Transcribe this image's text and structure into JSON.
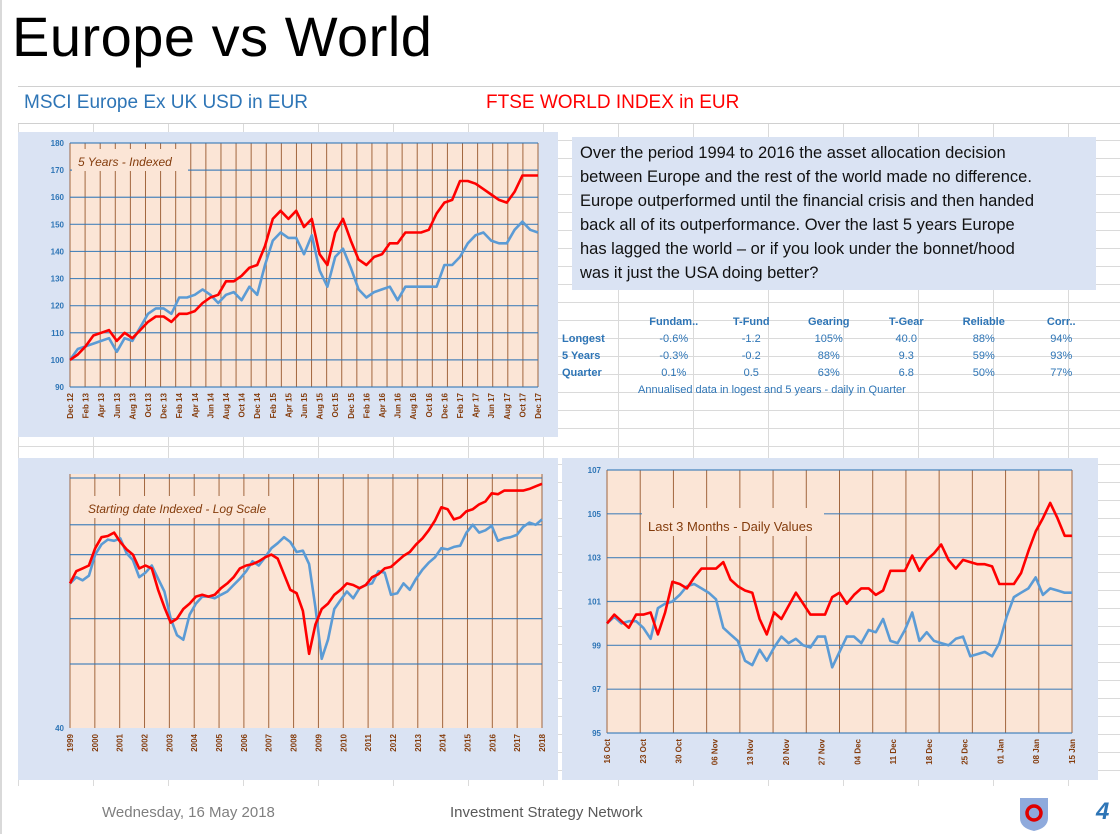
{
  "page": {
    "title": "Europe vs World",
    "series_label_europe": "MSCI Europe Ex UK USD  in  EUR",
    "series_label_world": "FTSE WORLD INDEX  in  EUR",
    "commentary_lines": [
      "Over the period 1994 to 2016 the asset allocation decision",
      "between Europe and the rest of the world made no difference.",
      "Europe outperformed until the financial crisis and then handed",
      "back all of its outperformance.  Over the last 5 years  Europe",
      "has lagged the world – or if you look under the bonnet/hood",
      "was it just the USA doing better?"
    ],
    "footer": {
      "date": "Wednesday, 16 May 2018",
      "organization": "Investment Strategy Network",
      "page_number": "4",
      "logo_icon": "shield-logo-icon"
    },
    "colors": {
      "europe": "#5b9bd5",
      "world": "#ff0000",
      "plot_bg": "#fbe5d6",
      "panel_bg": "#dae3f3",
      "vgrid": "#843c0c",
      "hgrid": "#2e75b6"
    }
  },
  "stats_table": {
    "columns": [
      "",
      "Fundam..",
      "T-Fund",
      "Gearing",
      "T-Gear",
      "Reliable",
      "Corr.."
    ],
    "rows": [
      {
        "label": "Longest",
        "values": [
          "-0.6%",
          "-1.2",
          "105%",
          "40.0",
          "88%",
          "94%"
        ]
      },
      {
        "label": "5 Years",
        "values": [
          "-0.3%",
          "-0.2",
          "88%",
          "9.3",
          "59%",
          "93%"
        ]
      },
      {
        "label": "Quarter",
        "values": [
          "0.1%",
          "0.5",
          "63%",
          "6.8",
          "50%",
          "77%"
        ]
      }
    ],
    "note": "Annualised data in logest and 5 years - daily in Quarter"
  },
  "chart_data": [
    {
      "type": "line",
      "title": "5 Years - Indexed",
      "xlabel": "",
      "ylabel": "",
      "ylim": [
        90,
        180
      ],
      "yticks": [
        90,
        100,
        110,
        120,
        130,
        140,
        150,
        160,
        170,
        180
      ],
      "grid": true,
      "legend": "none",
      "xticks": [
        "Dec 12",
        "Feb 13",
        "Apr 13",
        "Jun 13",
        "Aug 13",
        "Oct 13",
        "Dec 13",
        "Feb 14",
        "Apr 14",
        "Jun 14",
        "Aug 14",
        "Oct 14",
        "Dec 14",
        "Feb 15",
        "Apr 15",
        "Jun 15",
        "Aug 15",
        "Oct 15",
        "Dec 15",
        "Feb 16",
        "Apr 16",
        "Jun 16",
        "Aug 16",
        "Oct 16",
        "Dec 16",
        "Feb 17",
        "Apr 17",
        "Jun 17",
        "Aug 17",
        "Oct 17",
        "Dec 17"
      ],
      "series": [
        {
          "name": "MSCI Europe Ex UK USD in EUR",
          "color": "#5b9bd5",
          "values": [
            100,
            104,
            105,
            106,
            107,
            108,
            103,
            108,
            107,
            112,
            117,
            119,
            119,
            117,
            123,
            123,
            124,
            126,
            124,
            121,
            124,
            125,
            122,
            127,
            124,
            135,
            144,
            147,
            145,
            145,
            139,
            146,
            133,
            127,
            138,
            141,
            134,
            126,
            123,
            125,
            126,
            127,
            122,
            127,
            127,
            127,
            127,
            127,
            135,
            135,
            138,
            143,
            146,
            147,
            144,
            143,
            143,
            148,
            151,
            148,
            147
          ]
        },
        {
          "name": "FTSE WORLD INDEX in EUR",
          "color": "#ff0000",
          "values": [
            100,
            102,
            105,
            109,
            110,
            111,
            107,
            110,
            108,
            111,
            114,
            116,
            116,
            114,
            117,
            117,
            118,
            121,
            123,
            124,
            129,
            129,
            131,
            134,
            135,
            142,
            152,
            155,
            152,
            155,
            149,
            152,
            139,
            135,
            147,
            152,
            144,
            137,
            135,
            138,
            139,
            143,
            143,
            147,
            147,
            147,
            148,
            154,
            158,
            159,
            166,
            166,
            165,
            163,
            161,
            159,
            158,
            162,
            168,
            168,
            168
          ]
        }
      ]
    },
    {
      "type": "line",
      "title": "Starting date Indexed - Log Scale",
      "xlabel": "",
      "ylabel": "",
      "yscale": "log",
      "ylim": [
        40,
        200
      ],
      "yticks": [
        40
      ],
      "grid": true,
      "legend": "none",
      "xticks": [
        "1999",
        "2000",
        "2001",
        "2002",
        "2003",
        "2004",
        "2005",
        "2006",
        "2007",
        "2008",
        "2009",
        "2010",
        "2011",
        "2012",
        "2013",
        "2014",
        "2015",
        "2016",
        "2017",
        "2018"
      ],
      "series": [
        {
          "name": "MSCI Europe Ex UK USD in EUR",
          "color": "#5b9bd5",
          "values": [
            100,
            104,
            102,
            105,
            120,
            128,
            132,
            131,
            133,
            121,
            116,
            104,
            107,
            112,
            103,
            95,
            80,
            72,
            70,
            82,
            88,
            92,
            92,
            91,
            93,
            95,
            99,
            103,
            108,
            115,
            112,
            118,
            125,
            129,
            134,
            130,
            122,
            123,
            113,
            86,
            62,
            70,
            85,
            90,
            95,
            91,
            97,
            99,
            100,
            108,
            107,
            93,
            94,
            100,
            96,
            103,
            109,
            114,
            118,
            125,
            124,
            126,
            127,
            138,
            145,
            138,
            140,
            144,
            131,
            133,
            134,
            136,
            143,
            147,
            145,
            150
          ]
        },
        {
          "name": "FTSE WORLD INDEX in EUR",
          "color": "#ff0000",
          "values": [
            100,
            108,
            110,
            112,
            125,
            134,
            135,
            138,
            130,
            124,
            120,
            110,
            112,
            110,
            96,
            86,
            78,
            80,
            85,
            88,
            92,
            93,
            92,
            93,
            97,
            100,
            104,
            110,
            112,
            113,
            115,
            118,
            120,
            117,
            106,
            96,
            94,
            84,
            64,
            77,
            85,
            88,
            93,
            96,
            100,
            99,
            97,
            99,
            104,
            106,
            110,
            111,
            115,
            119,
            122,
            128,
            133,
            140,
            149,
            162,
            160,
            150,
            152,
            158,
            160,
            165,
            168,
            177,
            176,
            180,
            180,
            180,
            180,
            182,
            185,
            188
          ]
        }
      ]
    },
    {
      "type": "line",
      "title": "Last 3 Months - Daily Values",
      "xlabel": "",
      "ylabel": "",
      "ylim": [
        95,
        107
      ],
      "yticks": [
        95,
        97,
        99,
        101,
        103,
        105,
        107
      ],
      "grid": true,
      "legend": "none",
      "xticks": [
        "16 Oct",
        "23 Oct",
        "30 Oct",
        "06 Nov",
        "13 Nov",
        "20 Nov",
        "27 Nov",
        "04 Dec",
        "11 Dec",
        "18 Dec",
        "25 Dec",
        "01 Jan",
        "08 Jan",
        "15 Jan"
      ],
      "series": [
        {
          "name": "MSCI Europe Ex UK USD in EUR",
          "color": "#5b9bd5",
          "values": [
            100.0,
            100.3,
            100.0,
            100.1,
            100.1,
            99.8,
            99.3,
            100.7,
            100.9,
            101.0,
            101.3,
            101.7,
            101.8,
            101.6,
            101.4,
            101.1,
            99.8,
            99.5,
            99.2,
            98.3,
            98.1,
            98.8,
            98.3,
            98.9,
            99.4,
            99.1,
            99.3,
            99.0,
            98.9,
            99.4,
            99.4,
            98.0,
            98.7,
            99.4,
            99.4,
            99.1,
            99.7,
            99.6,
            100.2,
            99.2,
            99.1,
            99.7,
            100.5,
            99.2,
            99.6,
            99.2,
            99.1,
            99.0,
            99.3,
            99.4,
            98.5,
            98.6,
            98.7,
            98.5,
            99.1,
            100.3,
            101.2,
            101.4,
            101.6,
            102.1,
            101.3,
            101.6,
            101.5,
            101.4,
            101.4
          ]
        },
        {
          "name": "FTSE WORLD INDEX in EUR",
          "color": "#ff0000",
          "values": [
            100.0,
            100.4,
            100.1,
            99.8,
            100.4,
            100.4,
            100.5,
            99.5,
            100.5,
            101.9,
            101.8,
            101.6,
            102.1,
            102.5,
            102.5,
            102.5,
            102.8,
            102.0,
            101.7,
            101.5,
            101.4,
            100.2,
            99.5,
            100.5,
            100.2,
            100.8,
            101.4,
            100.9,
            100.4,
            100.4,
            100.4,
            101.2,
            101.4,
            100.9,
            101.3,
            101.6,
            101.6,
            101.3,
            101.5,
            102.4,
            102.4,
            102.4,
            103.1,
            102.4,
            102.9,
            103.2,
            103.6,
            102.9,
            102.5,
            102.9,
            102.8,
            102.7,
            102.7,
            102.6,
            101.8,
            101.8,
            101.8,
            102.3,
            103.3,
            104.2,
            104.8,
            105.5,
            104.8,
            104.0,
            104.0
          ]
        }
      ]
    }
  ]
}
